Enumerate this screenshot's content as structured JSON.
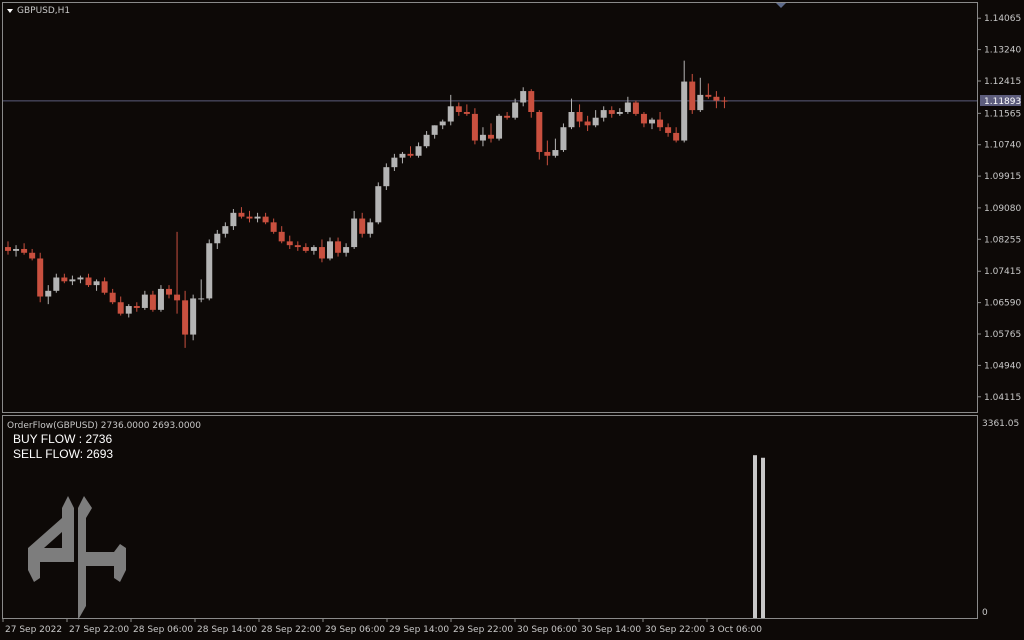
{
  "symbol_label": "GBPUSD,H1",
  "indicator_label": "OrderFlow(GBPUSD) 2736.0000 2693.0000",
  "buy_flow_text": "BUY FLOW : 2736",
  "sell_flow_text": "SELL FLOW: 2693",
  "current_price": "1.11893",
  "indicator_max_label": "3361.05",
  "indicator_min_label": "0",
  "colors": {
    "background": "#0d0907",
    "bull": "#b4b4b4",
    "bear": "#c9503f",
    "grid": "#8a8a8a",
    "text": "#c8c8c8",
    "price_line": "#5d5d7d"
  },
  "chart_data": {
    "type": "candlestick",
    "ylim": [
      1.03715,
      1.14465
    ],
    "y_ticks": [
      "1.14065",
      "1.13240",
      "1.12415",
      "1.11565",
      "1.10740",
      "1.09915",
      "1.09080",
      "1.08255",
      "1.07415",
      "1.06590",
      "1.05765",
      "1.04940",
      "1.04115"
    ],
    "x_ticks": [
      "27 Sep 2022",
      "27 Sep 22:00",
      "28 Sep 06:00",
      "28 Sep 14:00",
      "28 Sep 22:00",
      "29 Sep 06:00",
      "29 Sep 14:00",
      "29 Sep 22:00",
      "30 Sep 06:00",
      "30 Sep 14:00",
      "30 Sep 22:00",
      "3 Oct 06:00"
    ],
    "candles": [
      [
        1.0805,
        1.082,
        1.0785,
        1.0795
      ],
      [
        1.0795,
        1.081,
        1.078,
        1.08
      ],
      [
        1.08,
        1.0815,
        1.0785,
        1.079
      ],
      [
        1.079,
        1.08,
        1.077,
        1.0775
      ],
      [
        1.0775,
        1.079,
        1.066,
        1.0675
      ],
      [
        1.0675,
        1.0705,
        1.0655,
        1.069
      ],
      [
        1.069,
        1.0735,
        1.0685,
        1.0725
      ],
      [
        1.0725,
        1.0735,
        1.071,
        1.0715
      ],
      [
        1.0715,
        1.073,
        1.0705,
        1.072
      ],
      [
        1.072,
        1.073,
        1.071,
        1.0725
      ],
      [
        1.0725,
        1.0735,
        1.07,
        1.0705
      ],
      [
        1.0705,
        1.072,
        1.069,
        1.0715
      ],
      [
        1.0715,
        1.0725,
        1.068,
        1.0685
      ],
      [
        1.0685,
        1.0695,
        1.0655,
        1.066
      ],
      [
        1.066,
        1.0675,
        1.0625,
        1.063
      ],
      [
        1.063,
        1.0655,
        1.062,
        1.065
      ],
      [
        1.065,
        1.066,
        1.0635,
        1.0645
      ],
      [
        1.0645,
        1.069,
        1.064,
        1.068
      ],
      [
        1.068,
        1.069,
        1.0635,
        1.064
      ],
      [
        1.064,
        1.0705,
        1.0635,
        1.0695
      ],
      [
        1.0695,
        1.0705,
        1.067,
        1.068
      ],
      [
        1.068,
        1.0845,
        1.063,
        1.0665
      ],
      [
        1.0665,
        1.069,
        1.054,
        1.0575
      ],
      [
        1.0575,
        1.068,
        1.056,
        1.067
      ],
      [
        1.067,
        1.072,
        1.066,
        1.067
      ],
      [
        1.067,
        1.0825,
        1.0665,
        1.0815
      ],
      [
        1.0815,
        1.085,
        1.08,
        1.084
      ],
      [
        1.084,
        1.087,
        1.083,
        1.086
      ],
      [
        1.086,
        1.0905,
        1.085,
        1.0895
      ],
      [
        1.0895,
        1.091,
        1.088,
        1.0885
      ],
      [
        1.0885,
        1.09,
        1.087,
        1.088
      ],
      [
        1.088,
        1.0895,
        1.087,
        1.0885
      ],
      [
        1.0885,
        1.0895,
        1.0865,
        1.087
      ],
      [
        1.087,
        1.088,
        1.084,
        1.0845
      ],
      [
        1.0845,
        1.086,
        1.0815,
        1.082
      ],
      [
        1.082,
        1.0835,
        1.08,
        1.081
      ],
      [
        1.081,
        1.082,
        1.0795,
        1.0805
      ],
      [
        1.0805,
        1.0815,
        1.079,
        1.0795
      ],
      [
        1.0795,
        1.081,
        1.0785,
        1.0805
      ],
      [
        1.0805,
        1.0825,
        1.0765,
        1.0775
      ],
      [
        1.0775,
        1.083,
        1.077,
        1.082
      ],
      [
        1.082,
        1.083,
        1.078,
        1.079
      ],
      [
        1.079,
        1.0815,
        1.078,
        1.0805
      ],
      [
        1.0805,
        1.09,
        1.08,
        1.088
      ],
      [
        1.088,
        1.0895,
        1.083,
        1.084
      ],
      [
        1.084,
        1.088,
        1.083,
        1.087
      ],
      [
        1.087,
        1.0975,
        1.0865,
        1.0965
      ],
      [
        1.0965,
        1.1025,
        1.0955,
        1.1015
      ],
      [
        1.1015,
        1.105,
        1.1005,
        1.104
      ],
      [
        1.104,
        1.1055,
        1.1025,
        1.105
      ],
      [
        1.105,
        1.107,
        1.104,
        1.1045
      ],
      [
        1.1045,
        1.108,
        1.104,
        1.107
      ],
      [
        1.107,
        1.111,
        1.1065,
        1.11
      ],
      [
        1.11,
        1.1125,
        1.109,
        1.1125
      ],
      [
        1.1125,
        1.114,
        1.1115,
        1.1135
      ],
      [
        1.1135,
        1.1205,
        1.1125,
        1.1175
      ],
      [
        1.1175,
        1.1185,
        1.115,
        1.116
      ],
      [
        1.116,
        1.118,
        1.115,
        1.1155
      ],
      [
        1.1155,
        1.117,
        1.1075,
        1.1085
      ],
      [
        1.1085,
        1.112,
        1.107,
        1.11
      ],
      [
        1.11,
        1.113,
        1.108,
        1.109
      ],
      [
        1.109,
        1.1155,
        1.1085,
        1.115
      ],
      [
        1.115,
        1.116,
        1.114,
        1.1145
      ],
      [
        1.1145,
        1.1195,
        1.114,
        1.1185
      ],
      [
        1.1185,
        1.1225,
        1.1175,
        1.1215
      ],
      [
        1.1215,
        1.122,
        1.1145,
        1.116
      ],
      [
        1.116,
        1.1165,
        1.1035,
        1.1055
      ],
      [
        1.1055,
        1.1085,
        1.102,
        1.1045
      ],
      [
        1.1045,
        1.109,
        1.104,
        1.106
      ],
      [
        1.106,
        1.113,
        1.1055,
        1.112
      ],
      [
        1.112,
        1.1195,
        1.1115,
        1.116
      ],
      [
        1.116,
        1.118,
        1.112,
        1.1135
      ],
      [
        1.1135,
        1.115,
        1.111,
        1.1125
      ],
      [
        1.1125,
        1.1165,
        1.112,
        1.1145
      ],
      [
        1.1145,
        1.1175,
        1.1135,
        1.1165
      ],
      [
        1.1165,
        1.1175,
        1.1145,
        1.1155
      ],
      [
        1.1155,
        1.117,
        1.115,
        1.116
      ],
      [
        1.116,
        1.12,
        1.1155,
        1.1185
      ],
      [
        1.1185,
        1.119,
        1.115,
        1.1155
      ],
      [
        1.1155,
        1.116,
        1.112,
        1.113
      ],
      [
        1.113,
        1.1145,
        1.1115,
        1.114
      ],
      [
        1.114,
        1.116,
        1.111,
        1.112
      ],
      [
        1.112,
        1.113,
        1.1095,
        1.1105
      ],
      [
        1.1105,
        1.112,
        1.108,
        1.1085
      ],
      [
        1.1085,
        1.1295,
        1.108,
        1.124
      ],
      [
        1.124,
        1.126,
        1.1155,
        1.1165
      ],
      [
        1.1165,
        1.125,
        1.116,
        1.1205
      ],
      [
        1.1205,
        1.1235,
        1.1195,
        1.12
      ],
      [
        1.12,
        1.1215,
        1.117,
        1.119
      ],
      [
        1.119,
        1.12,
        1.117,
        1.1189
      ]
    ],
    "indicator": {
      "ylim": [
        0,
        3361.05
      ],
      "bars": [
        {
          "name": "BUY FLOW",
          "value": 2736
        },
        {
          "name": "SELL FLOW",
          "value": 2693
        }
      ]
    }
  }
}
